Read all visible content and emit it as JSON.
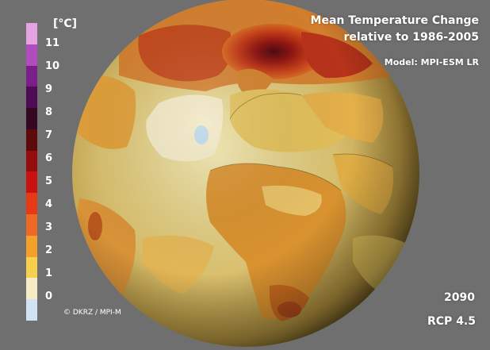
{
  "title": {
    "line1": "Mean Temperature Change",
    "line2": "relative to 1986-2005"
  },
  "model_label": "Model: MPI-ESM LR",
  "year": "2090",
  "scenario": "RCP 4.5",
  "credit": "© DKRZ / MPI-M",
  "colorbar": {
    "unit": "[°C]",
    "labels": [
      "11",
      "10",
      "9",
      "8",
      "7",
      "6",
      "5",
      "4",
      "3",
      "2",
      "1",
      "0"
    ],
    "colors_top_to_bottom": [
      "#e6a3e3",
      "#b24bbd",
      "#7a1f8a",
      "#4f0b55",
      "#350822",
      "#5c0a0a",
      "#970d0d",
      "#cc1111",
      "#e63a16",
      "#ee6a24",
      "#f3a12a",
      "#f7d04e",
      "#f5ecc6",
      "#cfe3f5"
    ]
  },
  "map": {
    "projection": "orthographic globe",
    "region_shown": "Europe, Africa, North Atlantic, Arctic, Middle East, eastern South America",
    "palette": {
      "land_warm_high": "#c86b1f",
      "land_warm_mid": "#e2a43c",
      "land_mild": "#d8c46a",
      "ocean_mild": "#d9c078",
      "ocean_cool": "#efe4b2",
      "arctic_hot": "#b0281a",
      "arctic_core": "#5a0a12",
      "cool_spot": "#bcd6e6"
    }
  }
}
